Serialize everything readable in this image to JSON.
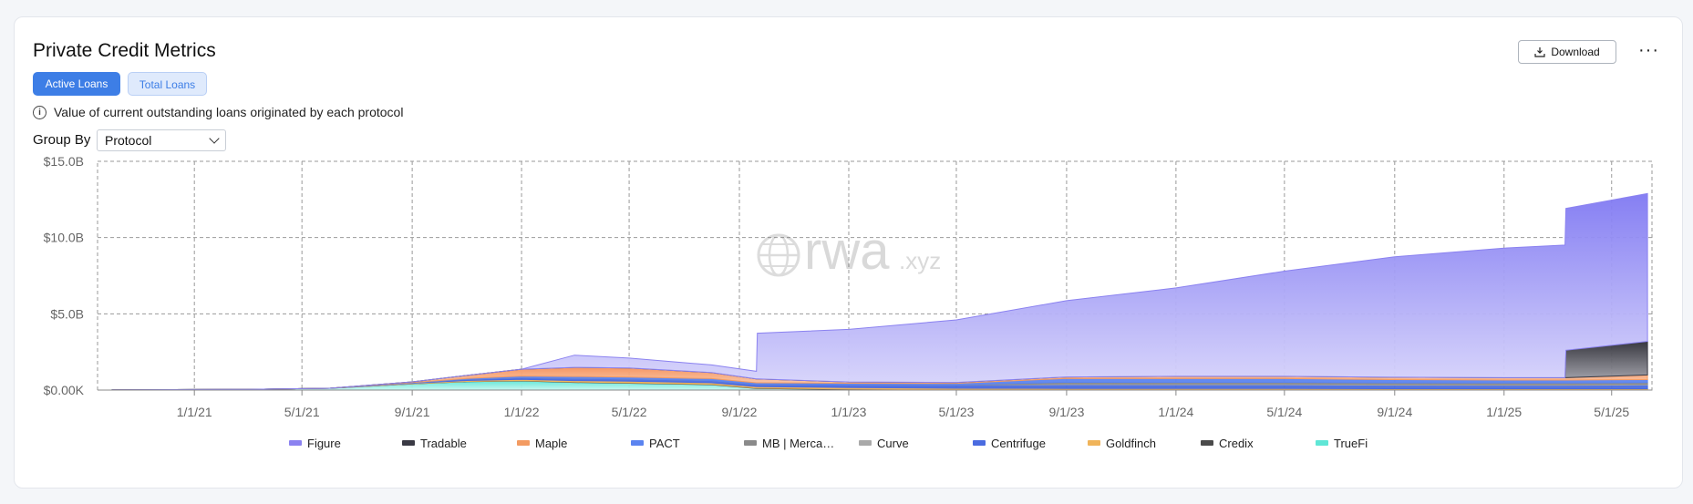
{
  "header": {
    "title": "Private Credit Metrics",
    "download_label": "Download",
    "more_label": "···"
  },
  "tabs": [
    {
      "label": "Active Loans",
      "active": true
    },
    {
      "label": "Total Loans",
      "active": false
    }
  ],
  "description": "Value of current outstanding loans originated by each protocol",
  "group_by": {
    "label": "Group By",
    "value": "Protocol"
  },
  "watermark": {
    "main": "rwa",
    "suffix": ".xyz"
  },
  "colors": {
    "accent": "#3d7ee6",
    "grid": "#9a9a9a"
  },
  "chart_data": {
    "type": "area",
    "stacked": true,
    "ylim": [
      0,
      15
    ],
    "y_ticks": [
      0,
      5,
      10,
      15
    ],
    "y_tick_labels": [
      "$0.00K",
      "$5.0B",
      "$10.0B",
      "$15.0B"
    ],
    "x_ticks": [
      "1/1/21",
      "5/1/21",
      "9/1/21",
      "1/1/22",
      "5/1/22",
      "9/1/22",
      "1/1/23",
      "5/1/23",
      "9/1/23",
      "1/1/24",
      "5/1/24",
      "9/1/24",
      "1/1/25",
      "5/1/25"
    ],
    "x_range": [
      "2020-09-15",
      "2025-06-15"
    ],
    "grid": true,
    "legend_position": "bottom",
    "legend": [
      {
        "name": "Figure",
        "color": "#8b82f0"
      },
      {
        "name": "Tradable",
        "color": "#3a3a44"
      },
      {
        "name": "Maple",
        "color": "#f39b62"
      },
      {
        "name": "PACT",
        "color": "#5b84f0"
      },
      {
        "name": "MB | Merca…",
        "color": "#8a8a8a"
      },
      {
        "name": "Curve",
        "color": "#a9a9a9"
      },
      {
        "name": "Centrifuge",
        "color": "#4a6be0"
      },
      {
        "name": "Goldfinch",
        "color": "#f0b45a"
      },
      {
        "name": "Credix",
        "color": "#4a4a4a"
      },
      {
        "name": "TrueFi",
        "color": "#5fe6d6"
      }
    ],
    "x": [
      "2020-10-01",
      "2021-03-01",
      "2021-06-01",
      "2021-09-01",
      "2021-11-01",
      "2022-01-01",
      "2022-03-01",
      "2022-05-01",
      "2022-08-01",
      "2022-09-20",
      "2022-09-21",
      "2023-01-01",
      "2023-05-01",
      "2023-09-01",
      "2024-01-01",
      "2024-05-01",
      "2024-09-01",
      "2025-01-01",
      "2025-03-10",
      "2025-03-11",
      "2025-06-10"
    ],
    "series": [
      {
        "name": "TrueFi",
        "values": [
          0.01,
          0.05,
          0.12,
          0.4,
          0.55,
          0.6,
          0.5,
          0.45,
          0.35,
          0.1,
          0.1,
          0.05,
          0.02,
          0.02,
          0.02,
          0.02,
          0.02,
          0.02,
          0.02,
          0.02,
          0.02
        ]
      },
      {
        "name": "Credix",
        "values": [
          0,
          0,
          0,
          0.01,
          0.02,
          0.02,
          0.03,
          0.03,
          0.03,
          0.03,
          0.03,
          0.03,
          0.02,
          0.02,
          0.02,
          0.02,
          0.02,
          0.02,
          0.02,
          0.02,
          0.02
        ]
      },
      {
        "name": "Goldfinch",
        "values": [
          0,
          0,
          0,
          0.03,
          0.06,
          0.08,
          0.09,
          0.1,
          0.1,
          0.1,
          0.1,
          0.09,
          0.08,
          0.07,
          0.06,
          0.06,
          0.05,
          0.05,
          0.05,
          0.05,
          0.05
        ]
      },
      {
        "name": "Centrifuge",
        "values": [
          0,
          0,
          0,
          0.03,
          0.08,
          0.12,
          0.15,
          0.15,
          0.15,
          0.15,
          0.15,
          0.18,
          0.22,
          0.25,
          0.25,
          0.25,
          0.23,
          0.22,
          0.22,
          0.22,
          0.25
        ]
      },
      {
        "name": "Curve",
        "values": [
          0,
          0,
          0,
          0,
          0,
          0,
          0,
          0,
          0,
          0,
          0,
          0,
          0,
          0.05,
          0.05,
          0.05,
          0.05,
          0.05,
          0.05,
          0.05,
          0.05
        ]
      },
      {
        "name": "MB | Merca…",
        "values": [
          0,
          0,
          0,
          0,
          0,
          0,
          0,
          0,
          0,
          0,
          0,
          0,
          0,
          0.1,
          0.1,
          0.1,
          0.1,
          0.1,
          0.1,
          0.1,
          0.1
        ]
      },
      {
        "name": "PACT",
        "values": [
          0,
          0,
          0,
          0.02,
          0.05,
          0.1,
          0.12,
          0.12,
          0.12,
          0.1,
          0.1,
          0.1,
          0.1,
          0.25,
          0.25,
          0.25,
          0.22,
          0.2,
          0.2,
          0.2,
          0.2
        ]
      },
      {
        "name": "Maple",
        "values": [
          0,
          0,
          0,
          0.05,
          0.2,
          0.45,
          0.6,
          0.6,
          0.4,
          0.25,
          0.25,
          0.08,
          0.06,
          0.1,
          0.15,
          0.15,
          0.15,
          0.15,
          0.15,
          0.15,
          0.3
        ]
      },
      {
        "name": "Tradable",
        "values": [
          0,
          0,
          0,
          0,
          0,
          0,
          0,
          0,
          0,
          0,
          0,
          0,
          0,
          0,
          0,
          0,
          0,
          0,
          0,
          1.8,
          2.2
        ]
      },
      {
        "name": "Figure",
        "values": [
          0,
          0,
          0,
          0,
          0,
          0,
          0.8,
          0.65,
          0.5,
          0.5,
          3.0,
          3.45,
          4.1,
          5.0,
          5.8,
          6.9,
          7.9,
          8.5,
          8.7,
          9.3,
          9.7
        ]
      }
    ]
  }
}
